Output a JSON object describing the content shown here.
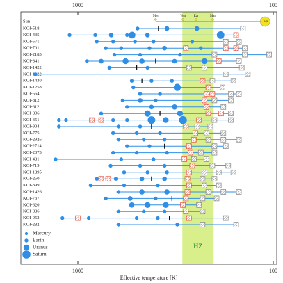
{
  "chart_data": {
    "type": "system-timeline",
    "xlabel": "Effective temperature [K]",
    "xlim": [
      1958,
      96
    ],
    "xticks": [
      1000,
      100
    ],
    "log_x": true,
    "hz": [
      292,
      202
    ],
    "hz_label": "HZ",
    "hz_color": "#d8ef8c",
    "hz_label_color": "#3a9a3a",
    "planet_color": "#2f8fe6",
    "candidate_in_color": "#e8543f",
    "candidate_out_color": "#888888",
    "tick_color": "#111111",
    "sun": {
      "name": "Sun",
      "color": "#f2e21b",
      "planets": [
        {
          "label": "Mer",
          "x": 400
        },
        {
          "label": "Ven",
          "x": 290
        },
        {
          "label": "Ear",
          "x": 248
        },
        {
          "label": "Mar",
          "x": 204
        },
        {
          "label": "Jup",
          "x": 110
        }
      ]
    },
    "systems": [
      {
        "name": "KOI-518",
        "planets": [
          [
            495,
            1
          ],
          [
            350,
            2
          ],
          [
            246,
            2
          ]
        ],
        "tick": 387,
        "candidates_in": [],
        "candidates_out": [
          143
        ]
      },
      {
        "name": "KOI-435",
        "planets": [
          [
            1103,
            1
          ],
          [
            815,
            1
          ],
          [
            675,
            2
          ],
          [
            560,
            1
          ],
          [
            528,
            6
          ],
          [
            440,
            2
          ],
          [
            186,
            8
          ]
        ],
        "candidates_in": [
          155
        ],
        "candidates_out": []
      },
      {
        "name": "KOI-571",
        "planets": [
          [
            800,
            1
          ],
          [
            660,
            1
          ],
          [
            510,
            1
          ],
          [
            410,
            1
          ],
          [
            260,
            1
          ]
        ],
        "candidates_in": [],
        "candidates_out": [
          175,
          150
        ]
      },
      {
        "name": "KOI-701",
        "planets": [
          [
            720,
            1
          ],
          [
            600,
            1
          ],
          [
            430,
            1
          ],
          [
            360,
            2
          ],
          [
            235,
            1
          ]
        ],
        "candidates_in": [
          280,
          175,
          155
        ],
        "candidates_out": [
          140
        ]
      },
      {
        "name": "KOI-2183",
        "planets": [
          [
            650,
            1
          ],
          [
            480,
            1
          ],
          [
            300,
            1
          ]
        ],
        "candidates_in": [],
        "candidates_out": [
          200,
          140,
          105
        ]
      },
      {
        "name": "KOI-841",
        "planets": [
          [
            900,
            1
          ],
          [
            760,
            2
          ],
          [
            570,
            4
          ],
          [
            470,
            3
          ],
          [
            320,
            2
          ],
          [
            225,
            4
          ]
        ],
        "tick": 400,
        "candidates_in": [
          190
        ],
        "candidates_out": [
          150
        ]
      },
      {
        "name": "KOI-1422",
        "planets": [
          [
            690,
            1
          ],
          [
            440,
            1
          ]
        ],
        "tick": 500,
        "candidates_in": [],
        "candidates_out": [
          270,
          225,
          145
        ]
      },
      {
        "name": "KOI-1922",
        "planets": [
          [
            1650,
            1
          ]
        ],
        "candidates_in": [],
        "candidates_out": [
          175,
          135
        ]
      },
      {
        "name": "KOI-1430",
        "planets": [
          [
            530,
            1
          ],
          [
            420,
            1
          ],
          [
            330,
            1
          ]
        ],
        "tick": 470,
        "candidates_in": [
          230
        ],
        "candidates_out": [
          205,
          160
        ]
      },
      {
        "name": "KOI-1258",
        "planets": [
          [
            520,
            1
          ],
          [
            310,
            7
          ]
        ],
        "candidates_in": [
          215
        ],
        "candidates_out": [
          182
        ]
      },
      {
        "name": "KOI-564",
        "planets": [
          [
            480,
            1
          ],
          [
            380,
            1
          ]
        ],
        "candidates_in": [
          220,
          205
        ],
        "candidates_out": [
          165,
          150
        ]
      },
      {
        "name": "KOI-812",
        "planets": [
          [
            590,
            1
          ],
          [
            480,
            2
          ],
          [
            400,
            1
          ]
        ],
        "candidates_in": [
          225
        ],
        "candidates_out": [
          200,
          165
        ]
      },
      {
        "name": "KOI-612",
        "planets": [
          [
            560,
            1
          ],
          [
            420,
            2
          ],
          [
            320,
            3
          ]
        ],
        "candidates_in": [
          220
        ],
        "candidates_out": [
          180
        ]
      },
      {
        "name": "KOI-806",
        "planets": [
          [
            760,
            1
          ],
          [
            440,
            5
          ],
          [
            300,
            4
          ]
        ],
        "tick": 380,
        "candidates_in": [
          215,
          185
        ],
        "candidates_out": [
          165
        ]
      },
      {
        "name": "KOI-351",
        "planets": [
          [
            1250,
            1
          ],
          [
            1150,
            1
          ],
          [
            660,
            1
          ],
          [
            560,
            1
          ],
          [
            420,
            8
          ],
          [
            355,
            4
          ],
          [
            290,
            9
          ]
        ],
        "candidates_in": [
          850,
          760,
          240
        ],
        "candidates_out": [
          200,
          165
        ]
      },
      {
        "name": "KOI-904",
        "planets": [
          [
            1250,
            1
          ],
          [
            620,
            1
          ],
          [
            480,
            1
          ]
        ],
        "tick": 420,
        "candidates_in": [
          280
        ],
        "candidates_out": [
          245,
          210
        ]
      },
      {
        "name": "KOI-775",
        "planets": [
          [
            660,
            1
          ],
          [
            500,
            1
          ],
          [
            380,
            1
          ]
        ],
        "candidates_in": [
          250
        ],
        "candidates_out": [
          220,
          180
        ]
      },
      {
        "name": "KOI-2926",
        "planets": [
          [
            620,
            1
          ],
          [
            460,
            1
          ],
          [
            360,
            1
          ]
        ],
        "candidates_in": [
          255
        ],
        "candidates_out": [
          215,
          180,
          150
        ]
      },
      {
        "name": "KOI-2714",
        "planets": [
          [
            560,
            1
          ],
          [
            430,
            1
          ]
        ],
        "tick": 360,
        "candidates_in": [
          270
        ],
        "candidates_out": [
          200,
          175
        ]
      },
      {
        "name": "KOI-2073",
        "planets": [
          [
            660,
            1
          ],
          [
            500,
            1
          ],
          [
            350,
            1
          ]
        ],
        "candidates_in": [
          265
        ],
        "candidates_out": [
          235,
          200
        ]
      },
      {
        "name": "KOI-481",
        "planets": [
          [
            1300,
            1
          ],
          [
            600,
            1
          ],
          [
            410,
            1
          ]
        ],
        "candidates_in": [
          285
        ],
        "candidates_out": [
          255,
          220
        ]
      },
      {
        "name": "KOI-719",
        "planets": [
          [
            680,
            1
          ],
          [
            480,
            1
          ],
          [
            360,
            1
          ]
        ],
        "candidates_in": [
          260
        ],
        "candidates_out": [
          205,
          170
        ]
      },
      {
        "name": "KOI-1895",
        "planets": [
          [
            580,
            1
          ],
          [
            440,
            1
          ],
          [
            350,
            1
          ]
        ],
        "candidates_in": [
          270
        ],
        "candidates_out": [
          225,
          190,
          160
        ]
      },
      {
        "name": "KOI-250",
        "planets": [
          [
            800,
            1
          ],
          [
            640,
            1
          ],
          [
            470,
            2
          ],
          [
            360,
            2
          ]
        ],
        "tick": 420,
        "candidates_in": [
          760,
          700,
          275
        ],
        "candidates_out": [
          230,
          200
        ]
      },
      {
        "name": "KOI-899",
        "planets": [
          [
            860,
            1
          ],
          [
            580,
            1
          ],
          [
            390,
            1
          ]
        ],
        "candidates_in": [
          270
        ],
        "candidates_out": [
          225,
          190
        ]
      },
      {
        "name": "KOI-1426",
        "planets": [
          [
            620,
            1
          ],
          [
            470,
            3
          ],
          [
            350,
            3
          ]
        ],
        "candidates_in": [
          275
        ],
        "candidates_out": [
          215,
          180,
          150
        ]
      },
      {
        "name": "KOI-737",
        "planets": [
          [
            720,
            1
          ],
          [
            540,
            2
          ],
          [
            400,
            1
          ]
        ],
        "tick": 330,
        "candidates_in": [
          280
        ],
        "candidates_out": [
          230,
          195
        ]
      },
      {
        "name": "KOI-620",
        "planets": [
          [
            530,
            3
          ],
          [
            440,
            4
          ],
          [
            355,
            4
          ]
        ],
        "candidates_in": [
          290
        ],
        "candidates_out": [
          240
        ]
      },
      {
        "name": "KOI-886",
        "planets": [
          [
            620,
            1
          ],
          [
            460,
            1
          ],
          [
            360,
            1
          ]
        ],
        "candidates_in": [
          280
        ],
        "candidates_out": [
          230
        ]
      },
      {
        "name": "KOI-952",
        "planets": [
          [
            1200,
            1
          ],
          [
            880,
            1
          ],
          [
            500,
            1
          ],
          [
            390,
            1
          ]
        ],
        "tick": 340,
        "candidates_in": [
          1000,
          270
        ],
        "candidates_out": [
          175
        ]
      },
      {
        "name": "KOI-282",
        "planets": [
          [
            620,
            1
          ],
          [
            310,
            1
          ]
        ],
        "candidates_in": [],
        "candidates_out": [
          230,
          155
        ]
      }
    ],
    "legend": [
      {
        "name": "Mercury",
        "r": 0.38
      },
      {
        "name": "Earth",
        "r": 1
      },
      {
        "name": "Uranus",
        "r": 4
      },
      {
        "name": "Saturn",
        "r": 9.4
      }
    ]
  }
}
